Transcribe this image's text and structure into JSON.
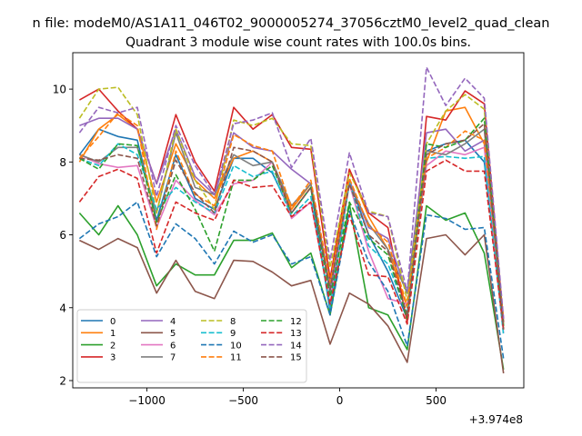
{
  "figure": {
    "suptitle": "n file: modeM0/AS1A11_046T02_9000005274_37056cztM0_level2_quad_clean"
  },
  "chart_data": {
    "type": "line",
    "title": "Quadrant 3 module wise count rates with 100.0s bins.",
    "xlabel": "",
    "ylabel": "",
    "x_offset_label": "+3.974e8",
    "xlim": [
      -1385,
      955
    ],
    "ylim": [
      1.8,
      11.0
    ],
    "xticks": [
      -1000,
      -500,
      0,
      500
    ],
    "xtick_labels": [
      "−1000",
      "−500",
      "0",
      "500"
    ],
    "yticks": [
      2,
      4,
      6,
      8,
      10
    ],
    "ytick_labels": [
      "2",
      "4",
      "6",
      "8",
      "10"
    ],
    "grid": false,
    "legend": {
      "placement": "lower-left",
      "columns": 4
    },
    "x": [
      -1350,
      -1250,
      -1150,
      -1050,
      -950,
      -850,
      -750,
      -650,
      -550,
      -450,
      -350,
      -250,
      -150,
      -50,
      50,
      150,
      250,
      350,
      450,
      550,
      650,
      750,
      850
    ],
    "series": [
      {
        "name": "0",
        "color": "#1f77b4",
        "style": "solid",
        "values": [
          8.2,
          8.9,
          8.7,
          8.6,
          6.4,
          8.2,
          7.0,
          6.7,
          8.1,
          8.1,
          7.7,
          6.6,
          7.3,
          3.9,
          7.5,
          6.0,
          5.0,
          3.7,
          8.3,
          8.5,
          8.6,
          8.0,
          3.6
        ]
      },
      {
        "name": "1",
        "color": "#ff7f0e",
        "style": "solid",
        "values": [
          8.0,
          8.9,
          9.3,
          8.9,
          6.9,
          8.5,
          7.5,
          7.0,
          8.1,
          8.3,
          8.0,
          6.7,
          7.4,
          4.5,
          7.8,
          6.5,
          5.6,
          4.0,
          8.0,
          9.4,
          9.5,
          8.5,
          3.4
        ]
      },
      {
        "name": "2",
        "color": "#2ca02c",
        "style": "solid",
        "values": [
          6.6,
          6.0,
          6.8,
          6.0,
          4.6,
          5.2,
          4.9,
          4.9,
          5.85,
          5.85,
          6.05,
          5.1,
          5.5,
          3.8,
          6.85,
          4.0,
          3.8,
          2.85,
          6.8,
          6.4,
          6.6,
          5.5,
          2.3
        ]
      },
      {
        "name": "3",
        "color": "#d62728",
        "style": "solid",
        "values": [
          9.7,
          10.0,
          9.4,
          8.9,
          7.4,
          9.3,
          8.0,
          7.2,
          9.5,
          8.9,
          9.3,
          8.4,
          8.35,
          4.8,
          7.8,
          6.6,
          6.2,
          3.6,
          9.25,
          9.15,
          9.95,
          9.6,
          3.6
        ]
      },
      {
        "name": "4",
        "color": "#9467bd",
        "style": "solid",
        "values": [
          9.0,
          9.2,
          9.2,
          8.9,
          7.4,
          8.9,
          7.6,
          7.1,
          8.8,
          8.4,
          8.3,
          7.8,
          7.4,
          4.4,
          7.5,
          6.2,
          5.9,
          4.4,
          8.8,
          8.9,
          8.3,
          8.6,
          3.7
        ]
      },
      {
        "name": "5",
        "color": "#8c564b",
        "style": "solid",
        "values": [
          5.85,
          5.6,
          5.9,
          5.65,
          4.4,
          5.3,
          4.45,
          4.25,
          5.3,
          5.27,
          4.98,
          4.6,
          4.75,
          3.0,
          4.4,
          4.1,
          3.5,
          2.5,
          5.9,
          6.0,
          5.45,
          6.0,
          2.2
        ]
      },
      {
        "name": "6",
        "color": "#e377c2",
        "style": "solid",
        "values": [
          8.2,
          7.95,
          7.85,
          7.9,
          6.2,
          7.5,
          6.95,
          6.55,
          7.4,
          7.5,
          8.0,
          6.45,
          6.9,
          4.1,
          7.4,
          5.55,
          4.25,
          4.1,
          7.9,
          8.3,
          8.2,
          8.4,
          3.3
        ]
      },
      {
        "name": "7",
        "color": "#7f7f7f",
        "style": "solid",
        "values": [
          8.2,
          8.0,
          8.4,
          8.4,
          6.6,
          8.8,
          7.3,
          7.1,
          8.2,
          7.9,
          8.0,
          6.8,
          7.4,
          4.6,
          7.4,
          6.3,
          5.6,
          4.4,
          8.3,
          8.2,
          8.5,
          8.9,
          3.5
        ]
      },
      {
        "name": "8",
        "color": "#bcbd22",
        "style": "dashed",
        "values": [
          9.2,
          10.0,
          10.05,
          9.3,
          6.6,
          8.9,
          7.5,
          6.7,
          9.15,
          9.0,
          9.2,
          8.5,
          8.45,
          5.1,
          7.7,
          6.65,
          6.5,
          4.2,
          8.5,
          9.4,
          9.85,
          9.45,
          3.55
        ]
      },
      {
        "name": "9",
        "color": "#17becf",
        "style": "dashed",
        "values": [
          8.1,
          7.9,
          8.5,
          8.2,
          6.7,
          7.3,
          6.9,
          6.6,
          7.9,
          7.6,
          7.75,
          6.5,
          7.05,
          4.0,
          7.45,
          5.7,
          5.2,
          3.85,
          8.1,
          8.15,
          8.1,
          8.15,
          3.25
        ]
      },
      {
        "name": "10",
        "color": "#1f77b4",
        "style": "dashed",
        "values": [
          5.9,
          6.3,
          6.5,
          6.9,
          5.4,
          6.3,
          5.9,
          5.2,
          6.1,
          5.8,
          6.0,
          5.2,
          5.4,
          3.8,
          6.65,
          5.25,
          4.45,
          2.95,
          6.55,
          6.45,
          6.15,
          6.2,
          2.6
        ]
      },
      {
        "name": "11",
        "color": "#ff7f0e",
        "style": "dashed",
        "values": [
          8.1,
          8.7,
          9.35,
          9.0,
          6.15,
          8.3,
          7.1,
          6.8,
          8.75,
          8.45,
          8.3,
          6.75,
          7.5,
          4.7,
          7.55,
          6.25,
          5.8,
          4.05,
          8.1,
          8.4,
          8.85,
          8.6,
          3.7
        ]
      },
      {
        "name": "12",
        "color": "#2ca02c",
        "style": "dashed",
        "values": [
          8.1,
          7.8,
          8.5,
          8.45,
          6.35,
          7.65,
          6.7,
          5.55,
          7.5,
          7.5,
          7.9,
          6.6,
          7.3,
          4.3,
          6.9,
          5.9,
          5.45,
          3.7,
          8.5,
          8.4,
          8.6,
          9.2,
          3.5
        ]
      },
      {
        "name": "13",
        "color": "#d62728",
        "style": "dashed",
        "values": [
          6.9,
          7.6,
          7.8,
          7.55,
          5.5,
          6.9,
          6.6,
          6.4,
          7.5,
          7.3,
          7.35,
          6.5,
          6.9,
          4.1,
          6.55,
          4.9,
          4.85,
          3.55,
          7.75,
          8.05,
          7.75,
          7.75,
          3.4
        ]
      },
      {
        "name": "14",
        "color": "#9467bd",
        "style": "dashed",
        "values": [
          8.8,
          9.5,
          9.35,
          9.5,
          7.05,
          9.0,
          7.9,
          7.1,
          9.05,
          9.15,
          9.35,
          7.85,
          8.65,
          5.3,
          8.25,
          6.6,
          6.5,
          4.45,
          10.6,
          9.55,
          10.3,
          9.75,
          3.7
        ]
      },
      {
        "name": "15",
        "color": "#8c564b",
        "style": "dashed",
        "values": [
          8.1,
          8.05,
          8.2,
          8.1,
          6.25,
          8.05,
          7.15,
          6.6,
          8.4,
          8.3,
          8.0,
          6.6,
          7.3,
          4.5,
          7.4,
          6.0,
          5.55,
          3.8,
          8.2,
          8.5,
          8.6,
          9.05,
          3.4
        ]
      }
    ]
  }
}
